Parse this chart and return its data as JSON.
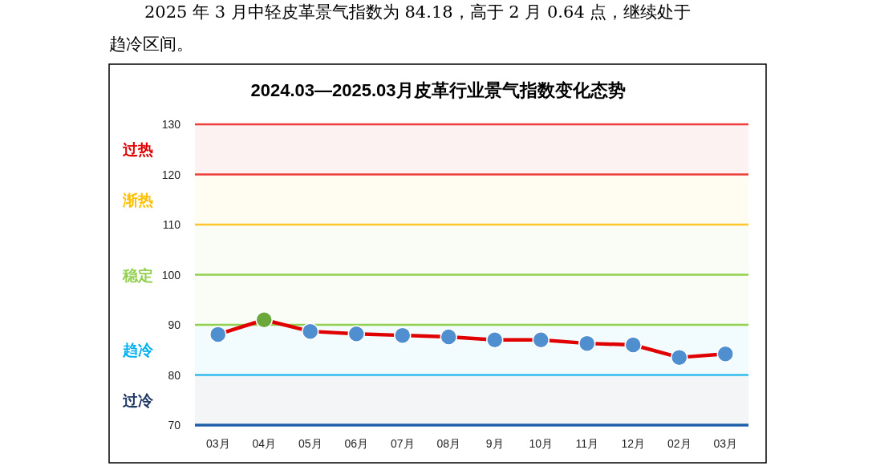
{
  "chart_data": {
    "type": "line",
    "title": "2024.03—2025.03月皮革行业景气指数变化态势",
    "annotations": [
      "2025 年 3 月中轻皮革景气指数为 84.18，高于 2 月 0.64 点，继续处于趋冷区间。"
    ],
    "categories": [
      "03月",
      "04月",
      "05月",
      "06月",
      "07月",
      "08月",
      "9月",
      "10月",
      "11月",
      "12月",
      "02月",
      "03月"
    ],
    "series": [
      {
        "color": "#e00000",
        "colors": [
          "#4f8fd0",
          "#6aa83c",
          "#4f8fd0",
          "#4f8fd0",
          "#4f8fd0",
          "#4f8fd0",
          "#4f8fd0",
          "#4f8fd0",
          "#4f8fd0",
          "#4f8fd0",
          "#4f8fd0",
          "#4f8fd0"
        ],
        "values": [
          88.1,
          91.0,
          88.7,
          88.2,
          87.9,
          87.6,
          87.0,
          87.0,
          86.3,
          86.0,
          83.5,
          84.2
        ]
      }
    ],
    "marker": "circle",
    "ylim": [
      70,
      130
    ],
    "yticks": [
      70,
      80,
      90,
      100,
      110,
      120,
      130
    ],
    "ref_lines": [
      {
        "axis": "y",
        "value": 130,
        "color": "#ee3b3b"
      },
      {
        "axis": "y",
        "value": 120,
        "color": "#ee3b3b"
      },
      {
        "axis": "y",
        "value": 110,
        "color": "#ffc629"
      },
      {
        "axis": "y",
        "value": 100,
        "color": "#92d050"
      },
      {
        "axis": "y",
        "value": 90,
        "color": "#92d050"
      },
      {
        "axis": "y",
        "value": 80,
        "color": "#33bbee"
      }
    ],
    "bands": [
      {
        "axis": "y",
        "from": 120,
        "to": 130,
        "label": "过热",
        "color": "#e00000"
      },
      {
        "axis": "y",
        "from": 110,
        "to": 120,
        "label": "渐热",
        "color": "#ffc000"
      },
      {
        "axis": "y",
        "from": 90,
        "to": 110,
        "label": "稳定",
        "color": "#92d050"
      },
      {
        "axis": "y",
        "from": 80,
        "to": 90,
        "label": "趋冷",
        "color": "#00b0f0"
      },
      {
        "axis": "y",
        "from": 70,
        "to": 80,
        "label": "过冷",
        "color": "#1f3864"
      }
    ]
  }
}
